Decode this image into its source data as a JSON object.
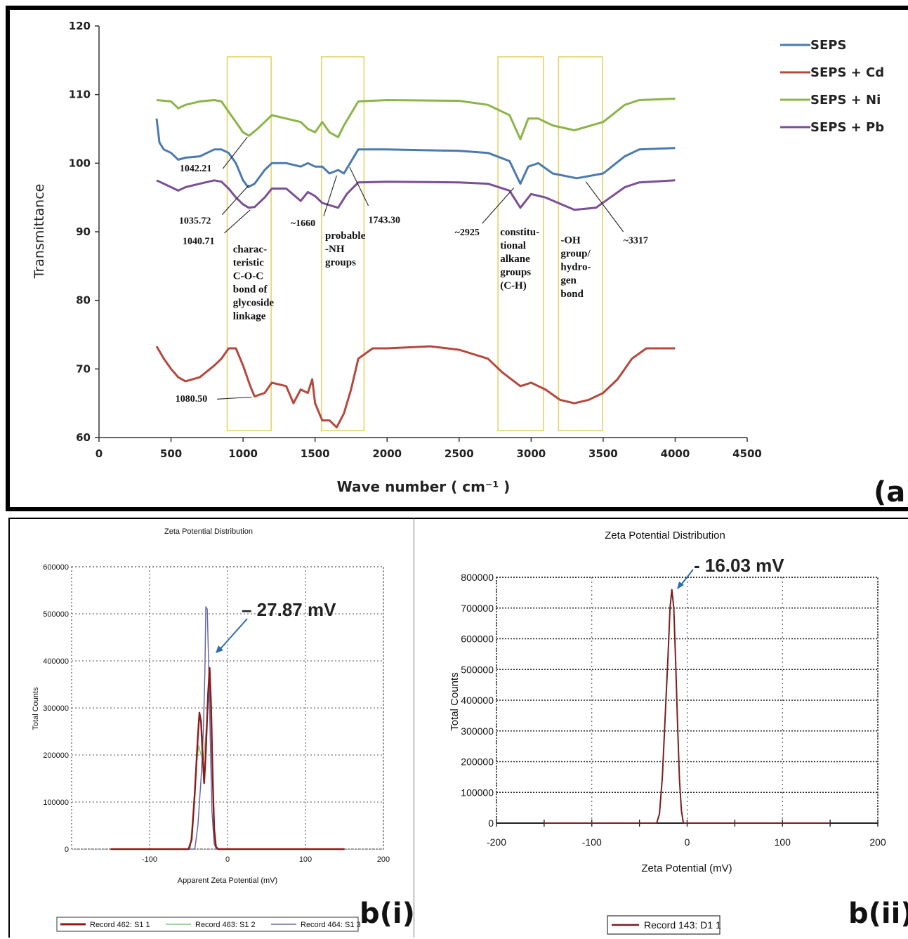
{
  "chart_data": [
    {
      "type": "line",
      "panel_label": "(a)",
      "xlabel": "Wave number ( cm⁻¹ )",
      "ylabel": "Transmittance",
      "xlim": [
        0,
        4500
      ],
      "ylim": [
        60,
        120
      ],
      "x_ticks": [
        "0",
        "500",
        "1000",
        "1500",
        "2000",
        "2500",
        "3000",
        "3500",
        "4000",
        "4500"
      ],
      "y_ticks": [
        "60",
        "70",
        "80",
        "90",
        "100",
        "110",
        "120"
      ],
      "legend_position": "top-right",
      "series": [
        {
          "name": "SEPS",
          "color": "#4a7ab0",
          "points": [
            [
              400,
              106.5
            ],
            [
              420,
              103
            ],
            [
              450,
              102
            ],
            [
              500,
              101.5
            ],
            [
              550,
              100.5
            ],
            [
              600,
              100.8
            ],
            [
              700,
              101
            ],
            [
              800,
              102
            ],
            [
              850,
              102
            ],
            [
              900,
              101.5
            ],
            [
              950,
              100
            ],
            [
              1000,
              97.5
            ],
            [
              1035,
              96.5
            ],
            [
              1080,
              97
            ],
            [
              1150,
              99
            ],
            [
              1200,
              100
            ],
            [
              1300,
              100
            ],
            [
              1400,
              99.5
            ],
            [
              1450,
              100
            ],
            [
              1500,
              99.5
            ],
            [
              1550,
              99.5
            ],
            [
              1600,
              98.5
            ],
            [
              1660,
              99
            ],
            [
              1700,
              98.5
            ],
            [
              1743,
              100
            ],
            [
              1800,
              102
            ],
            [
              2000,
              102
            ],
            [
              2500,
              101.8
            ],
            [
              2700,
              101.5
            ],
            [
              2850,
              100.3
            ],
            [
              2925,
              97
            ],
            [
              2980,
              99.5
            ],
            [
              3050,
              100
            ],
            [
              3150,
              98.5
            ],
            [
              3317,
              97.8
            ],
            [
              3500,
              98.5
            ],
            [
              3650,
              101
            ],
            [
              3750,
              102
            ],
            [
              4000,
              102.2
            ]
          ]
        },
        {
          "name": "SEPS + Cd",
          "color": "#b5483d",
          "points": [
            [
              400,
              73.3
            ],
            [
              450,
              71.5
            ],
            [
              500,
              70
            ],
            [
              550,
              68.8
            ],
            [
              600,
              68.2
            ],
            [
              700,
              68.8
            ],
            [
              800,
              70.5
            ],
            [
              850,
              71.5
            ],
            [
              900,
              73
            ],
            [
              950,
              73
            ],
            [
              1000,
              70.5
            ],
            [
              1050,
              67.5
            ],
            [
              1080,
              66
            ],
            [
              1150,
              66.5
            ],
            [
              1200,
              68
            ],
            [
              1300,
              67.5
            ],
            [
              1350,
              65
            ],
            [
              1400,
              67
            ],
            [
              1450,
              66.5
            ],
            [
              1480,
              68.5
            ],
            [
              1500,
              65
            ],
            [
              1550,
              62.5
            ],
            [
              1600,
              62.5
            ],
            [
              1650,
              61.5
            ],
            [
              1700,
              63.5
            ],
            [
              1750,
              67
            ],
            [
              1800,
              71.5
            ],
            [
              1900,
              73
            ],
            [
              2000,
              73
            ],
            [
              2300,
              73.3
            ],
            [
              2500,
              72.8
            ],
            [
              2700,
              71.5
            ],
            [
              2800,
              69.5
            ],
            [
              2925,
              67.5
            ],
            [
              3000,
              68
            ],
            [
              3100,
              67
            ],
            [
              3200,
              65.5
            ],
            [
              3300,
              65
            ],
            [
              3400,
              65.5
            ],
            [
              3500,
              66.5
            ],
            [
              3600,
              68.5
            ],
            [
              3700,
              71.5
            ],
            [
              3800,
              73
            ],
            [
              4000,
              73
            ]
          ]
        },
        {
          "name": "SEPS + Ni",
          "color": "#8ab548",
          "points": [
            [
              400,
              109.2
            ],
            [
              500,
              109
            ],
            [
              550,
              108
            ],
            [
              600,
              108.5
            ],
            [
              700,
              109
            ],
            [
              800,
              109.2
            ],
            [
              850,
              109
            ],
            [
              900,
              107.5
            ],
            [
              950,
              106
            ],
            [
              1000,
              104.5
            ],
            [
              1042,
              104
            ],
            [
              1100,
              105
            ],
            [
              1150,
              106
            ],
            [
              1200,
              107
            ],
            [
              1300,
              106.5
            ],
            [
              1400,
              106
            ],
            [
              1450,
              105
            ],
            [
              1500,
              104.5
            ],
            [
              1550,
              106
            ],
            [
              1600,
              104.5
            ],
            [
              1660,
              103.8
            ],
            [
              1700,
              105.5
            ],
            [
              1743,
              107
            ],
            [
              1800,
              109
            ],
            [
              2000,
              109.2
            ],
            [
              2500,
              109.1
            ],
            [
              2700,
              108.5
            ],
            [
              2850,
              107
            ],
            [
              2925,
              103.5
            ],
            [
              2980,
              106.5
            ],
            [
              3050,
              106.5
            ],
            [
              3150,
              105.5
            ],
            [
              3300,
              104.8
            ],
            [
              3500,
              106
            ],
            [
              3650,
              108.5
            ],
            [
              3750,
              109.2
            ],
            [
              4000,
              109.4
            ]
          ]
        },
        {
          "name": "SEPS + Pb",
          "color": "#7a4f96",
          "points": [
            [
              400,
              97.5
            ],
            [
              450,
              97
            ],
            [
              500,
              96.5
            ],
            [
              550,
              96
            ],
            [
              600,
              96.5
            ],
            [
              700,
              97
            ],
            [
              800,
              97.5
            ],
            [
              850,
              97.3
            ],
            [
              900,
              96.3
            ],
            [
              950,
              95
            ],
            [
              1000,
              94
            ],
            [
              1040,
              93.5
            ],
            [
              1080,
              93.6
            ],
            [
              1150,
              95
            ],
            [
              1200,
              96.3
            ],
            [
              1300,
              96.3
            ],
            [
              1400,
              94.5
            ],
            [
              1450,
              95.8
            ],
            [
              1500,
              95.2
            ],
            [
              1550,
              94.2
            ],
            [
              1660,
              93.5
            ],
            [
              1720,
              95.5
            ],
            [
              1800,
              97.2
            ],
            [
              2000,
              97.3
            ],
            [
              2500,
              97.2
            ],
            [
              2700,
              97
            ],
            [
              2850,
              96
            ],
            [
              2925,
              93.5
            ],
            [
              3000,
              95.5
            ],
            [
              3100,
              95
            ],
            [
              3300,
              93.2
            ],
            [
              3450,
              93.5
            ],
            [
              3550,
              95
            ],
            [
              3650,
              96.5
            ],
            [
              3750,
              97.2
            ],
            [
              4000,
              97.5
            ]
          ]
        }
      ],
      "annotations": [
        "1042.21",
        "1035.72",
        "1040.71",
        "~1660",
        "1743.30",
        "~2925",
        "~3317",
        "1080.50"
      ],
      "regions": [
        {
          "label_lines": [
            "charac-",
            "teristic",
            "C-O-C",
            "bond of",
            "glycoside",
            "linkage"
          ]
        },
        {
          "label_lines": [
            "probable",
            "-NH",
            "groups"
          ]
        },
        {
          "label_lines": [
            "constitu-",
            "tional",
            "alkane",
            "groups",
            "(C-H)"
          ]
        },
        {
          "label_lines": [
            "-OH",
            "group/",
            "hydro-",
            "gen",
            "bond"
          ]
        }
      ]
    },
    {
      "type": "line",
      "panel_label": "b(i)",
      "title": "Zeta Potential Distribution",
      "xlabel": "Apparent Zeta Potential (mV)",
      "ylabel": "Total Counts",
      "xlim": [
        -200,
        200
      ],
      "ylim": [
        0,
        600000
      ],
      "x_ticks": [
        "-100",
        "0",
        "100",
        "200"
      ],
      "y_ticks": [
        "0",
        "100000",
        "200000",
        "300000",
        "400000",
        "500000",
        "600000"
      ],
      "peak_label": "– 27.87 mV",
      "series": [
        {
          "name": "Record 462: S1 1",
          "color": "#8b1a1a",
          "points": [
            [
              -150,
              0
            ],
            [
              -50,
              0
            ],
            [
              -46,
              20000
            ],
            [
              -42,
              120000
            ],
            [
              -38,
              240000
            ],
            [
              -36,
              290000
            ],
            [
              -34,
              270000
            ],
            [
              -32,
              200000
            ],
            [
              -30,
              140000
            ],
            [
              -28,
              200000
            ],
            [
              -25,
              330000
            ],
            [
              -23,
              385000
            ],
            [
              -21,
              300000
            ],
            [
              -19,
              150000
            ],
            [
              -17,
              40000
            ],
            [
              -15,
              5000
            ],
            [
              -12,
              0
            ],
            [
              150,
              0
            ]
          ]
        },
        {
          "name": "Record 463: S1 2",
          "color": "#7dc77d",
          "points": [
            [
              -150,
              0
            ],
            [
              -48,
              0
            ],
            [
              -44,
              80000
            ],
            [
              -40,
              180000
            ],
            [
              -37,
              220000
            ],
            [
              -34,
              200000
            ],
            [
              -31,
              190000
            ],
            [
              -28,
              240000
            ],
            [
              -25,
              310000
            ],
            [
              -23,
              330000
            ],
            [
              -21,
              260000
            ],
            [
              -19,
              140000
            ],
            [
              -17,
              50000
            ],
            [
              -14,
              0
            ],
            [
              150,
              0
            ]
          ]
        },
        {
          "name": "Record 464: S1 3",
          "color": "#6a6aa8",
          "points": [
            [
              -150,
              0
            ],
            [
              -42,
              0
            ],
            [
              -38,
              50000
            ],
            [
              -34,
              150000
            ],
            [
              -31,
              250000
            ],
            [
              -29,
              380000
            ],
            [
              -27.87,
              515000
            ],
            [
              -26,
              510000
            ],
            [
              -24,
              380000
            ],
            [
              -22,
              220000
            ],
            [
              -20,
              80000
            ],
            [
              -17,
              10000
            ],
            [
              -14,
              0
            ],
            [
              150,
              0
            ]
          ]
        }
      ]
    },
    {
      "type": "line",
      "panel_label": "b(ii)",
      "title": "Zeta Potential Distribution",
      "xlabel": "Zeta Potential (mV)",
      "ylabel": "Total Counts",
      "xlim": [
        -200,
        200
      ],
      "ylim": [
        0,
        800000
      ],
      "x_ticks": [
        "-200",
        "-100",
        "0",
        "100",
        "200"
      ],
      "y_ticks": [
        "0",
        "100000",
        "200000",
        "300000",
        "400000",
        "500000",
        "600000",
        "700000",
        "800000"
      ],
      "peak_label": "- 16.03 mV",
      "series": [
        {
          "name": "Record 143: D1 1",
          "color": "#7a1f1f",
          "points": [
            [
              -150,
              0
            ],
            [
              -32,
              0
            ],
            [
              -29,
              30000
            ],
            [
              -26,
              150000
            ],
            [
              -23,
              350000
            ],
            [
              -20,
              550000
            ],
            [
              -18,
              700000
            ],
            [
              -16.03,
              760000
            ],
            [
              -14,
              700000
            ],
            [
              -12,
              520000
            ],
            [
              -10,
              320000
            ],
            [
              -8,
              140000
            ],
            [
              -6,
              40000
            ],
            [
              -4,
              0
            ],
            [
              150,
              0
            ]
          ]
        }
      ]
    }
  ]
}
